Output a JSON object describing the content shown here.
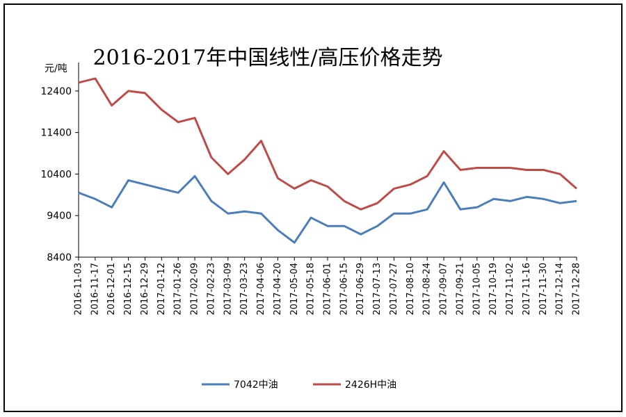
{
  "chart_data": {
    "type": "line",
    "title": "2016-2017年中国线性/高压价格走势",
    "ylabel": "元/吨",
    "xlabel": "",
    "ylim": [
      8400,
      13000
    ],
    "yticks": [
      8400,
      9400,
      10400,
      11400,
      12400
    ],
    "grid": false,
    "legend_position": "bottom",
    "categories": [
      "2016-11-03",
      "2016-11-17",
      "2016-12-01",
      "2016-12-15",
      "2016-12-29",
      "2017-01-12",
      "2017-01-26",
      "2017-02-09",
      "2017-02-23",
      "2017-03-09",
      "2017-03-23",
      "2017-04-06",
      "2017-04-20",
      "2017-05-04",
      "2017-05-18",
      "2017-06-01",
      "2017-06-15",
      "2017-06-29",
      "2017-07-13",
      "2017-07-27",
      "2017-08-10",
      "2017-08-24",
      "2017-09-07",
      "2017-09-21",
      "2017-10-05",
      "2017-10-19",
      "2017-11-02",
      "2017-11-16",
      "2017-11-30",
      "2017-12-14",
      "2017-12-28"
    ],
    "series": [
      {
        "name": "7042中油",
        "color": "#4a7ebb",
        "values": [
          9950,
          9800,
          9600,
          10250,
          10150,
          10050,
          9950,
          10350,
          9750,
          9450,
          9500,
          9450,
          9050,
          8750,
          9350,
          9150,
          9150,
          8950,
          9150,
          9450,
          9450,
          9550,
          10200,
          9550,
          9600,
          9800,
          9750,
          9850,
          9800,
          9700,
          9750
        ]
      },
      {
        "name": "2426H中油",
        "color": "#be4b48",
        "values": [
          12600,
          12700,
          12050,
          12400,
          12350,
          11950,
          11650,
          11750,
          10800,
          10400,
          10750,
          11200,
          10300,
          10050,
          10250,
          10100,
          9750,
          9550,
          9700,
          10050,
          10150,
          10350,
          10950,
          10500,
          10550,
          10550,
          10550,
          10500,
          10500,
          10400,
          10050
        ]
      }
    ]
  }
}
